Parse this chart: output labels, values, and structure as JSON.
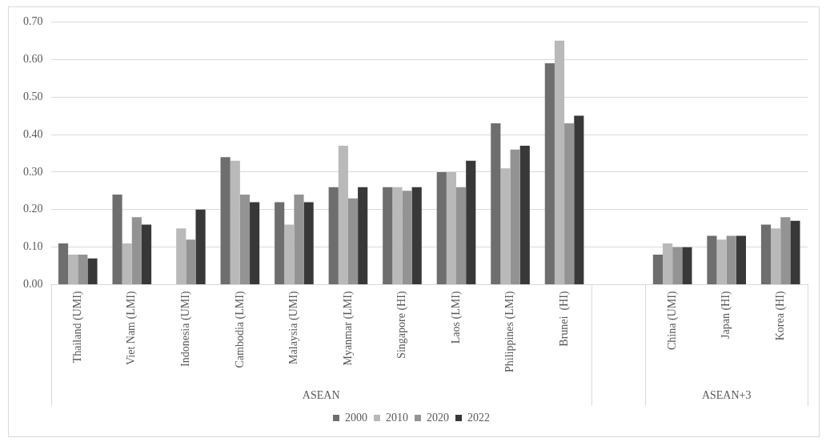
{
  "chart_data": {
    "type": "bar",
    "categories": [
      "Thailand (UMI)",
      "Viet Nam (LMI)",
      "Indonesia (UMI)",
      "Cambodia (LMI)",
      "Malaysia (UMI)",
      "Myanmar (LMI)",
      "Singapore (HI)",
      "Laos (LMI)",
      "Philippines (LMI)",
      "Brunei  (HI)",
      null,
      "China (UMI)",
      "Japan (HI)",
      "Korea (HI)"
    ],
    "series": [
      {
        "name": "2000",
        "color": "#6e6e6e",
        "values": [
          0.11,
          0.24,
          null,
          0.34,
          0.22,
          0.26,
          0.26,
          0.3,
          0.43,
          0.59,
          null,
          0.08,
          0.13,
          0.16
        ]
      },
      {
        "name": "2010",
        "color": "#b9b9b9",
        "values": [
          0.08,
          0.11,
          0.15,
          0.33,
          0.16,
          0.37,
          0.26,
          0.3,
          0.31,
          0.65,
          null,
          0.11,
          0.12,
          0.15
        ]
      },
      {
        "name": "2020",
        "color": "#939393",
        "values": [
          0.08,
          0.18,
          0.12,
          0.24,
          0.24,
          0.23,
          0.25,
          0.26,
          0.36,
          0.43,
          null,
          0.1,
          0.13,
          0.18
        ]
      },
      {
        "name": "2022",
        "color": "#383838",
        "values": [
          0.07,
          0.16,
          0.2,
          0.22,
          0.22,
          0.26,
          0.26,
          0.33,
          0.37,
          0.45,
          null,
          0.1,
          0.13,
          0.17
        ]
      }
    ],
    "ylim": [
      0,
      0.7
    ],
    "yticks": [
      {
        "value": 0,
        "label": "0.00"
      },
      {
        "value": 0.1,
        "label": "0.10"
      },
      {
        "value": 0.2,
        "label": "0.20"
      },
      {
        "value": 0.3,
        "label": "0.30"
      },
      {
        "value": 0.4,
        "label": "0.40"
      },
      {
        "value": 0.5,
        "label": "0.50"
      },
      {
        "value": 0.6,
        "label": "0.60"
      },
      {
        "value": 0.7,
        "label": "0.70"
      }
    ],
    "annotations": [
      "ASEAN",
      "ASEAN+3"
    ],
    "grid": "y",
    "legend": "bottom"
  }
}
